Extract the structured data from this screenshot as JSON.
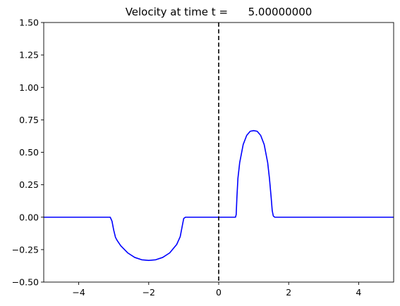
{
  "chart_data": {
    "type": "line",
    "title": "Velocity at time t =      5.00000000",
    "xlabel": "",
    "ylabel": "",
    "xlim": [
      -5,
      5
    ],
    "ylim": [
      -0.5,
      1.5
    ],
    "grid": false,
    "x_ticks": [
      -4,
      -2,
      0,
      2,
      4
    ],
    "x_tick_labels": [
      "−4",
      "−2",
      "0",
      "2",
      "4"
    ],
    "y_ticks": [
      -0.5,
      -0.25,
      0.0,
      0.25,
      0.5,
      0.75,
      1.0,
      1.25,
      1.5
    ],
    "y_tick_labels": [
      "−0.50",
      "−0.25",
      "0.00",
      "0.25",
      "0.50",
      "0.75",
      "1.00",
      "1.25",
      "1.50"
    ],
    "series": [
      {
        "color": "#0000ff",
        "x": [
          -5.0,
          -3.1,
          -3.05,
          -3.0,
          -2.95,
          -2.9,
          -2.8,
          -2.6,
          -2.4,
          -2.2,
          -2.0,
          -1.8,
          -1.6,
          -1.4,
          -1.2,
          -1.1,
          -1.05,
          -1.0,
          -0.95,
          0.0,
          0.48,
          0.5,
          0.52,
          0.55,
          0.6,
          0.7,
          0.8,
          0.9,
          1.0,
          1.1,
          1.2,
          1.3,
          1.4,
          1.45,
          1.5,
          1.53,
          1.56,
          1.6,
          5.0
        ],
        "y": [
          0.0,
          0.0,
          -0.03,
          -0.1,
          -0.155,
          -0.18,
          -0.22,
          -0.275,
          -0.31,
          -0.328,
          -0.333,
          -0.328,
          -0.31,
          -0.275,
          -0.21,
          -0.15,
          -0.08,
          -0.01,
          0.0,
          0.0,
          0.0,
          0.02,
          0.15,
          0.3,
          0.42,
          0.56,
          0.63,
          0.662,
          0.667,
          0.662,
          0.63,
          0.56,
          0.42,
          0.3,
          0.15,
          0.05,
          0.01,
          0.0,
          0.0
        ]
      }
    ],
    "vline": {
      "x": 0,
      "color": "#000000",
      "style": "dashed"
    }
  }
}
